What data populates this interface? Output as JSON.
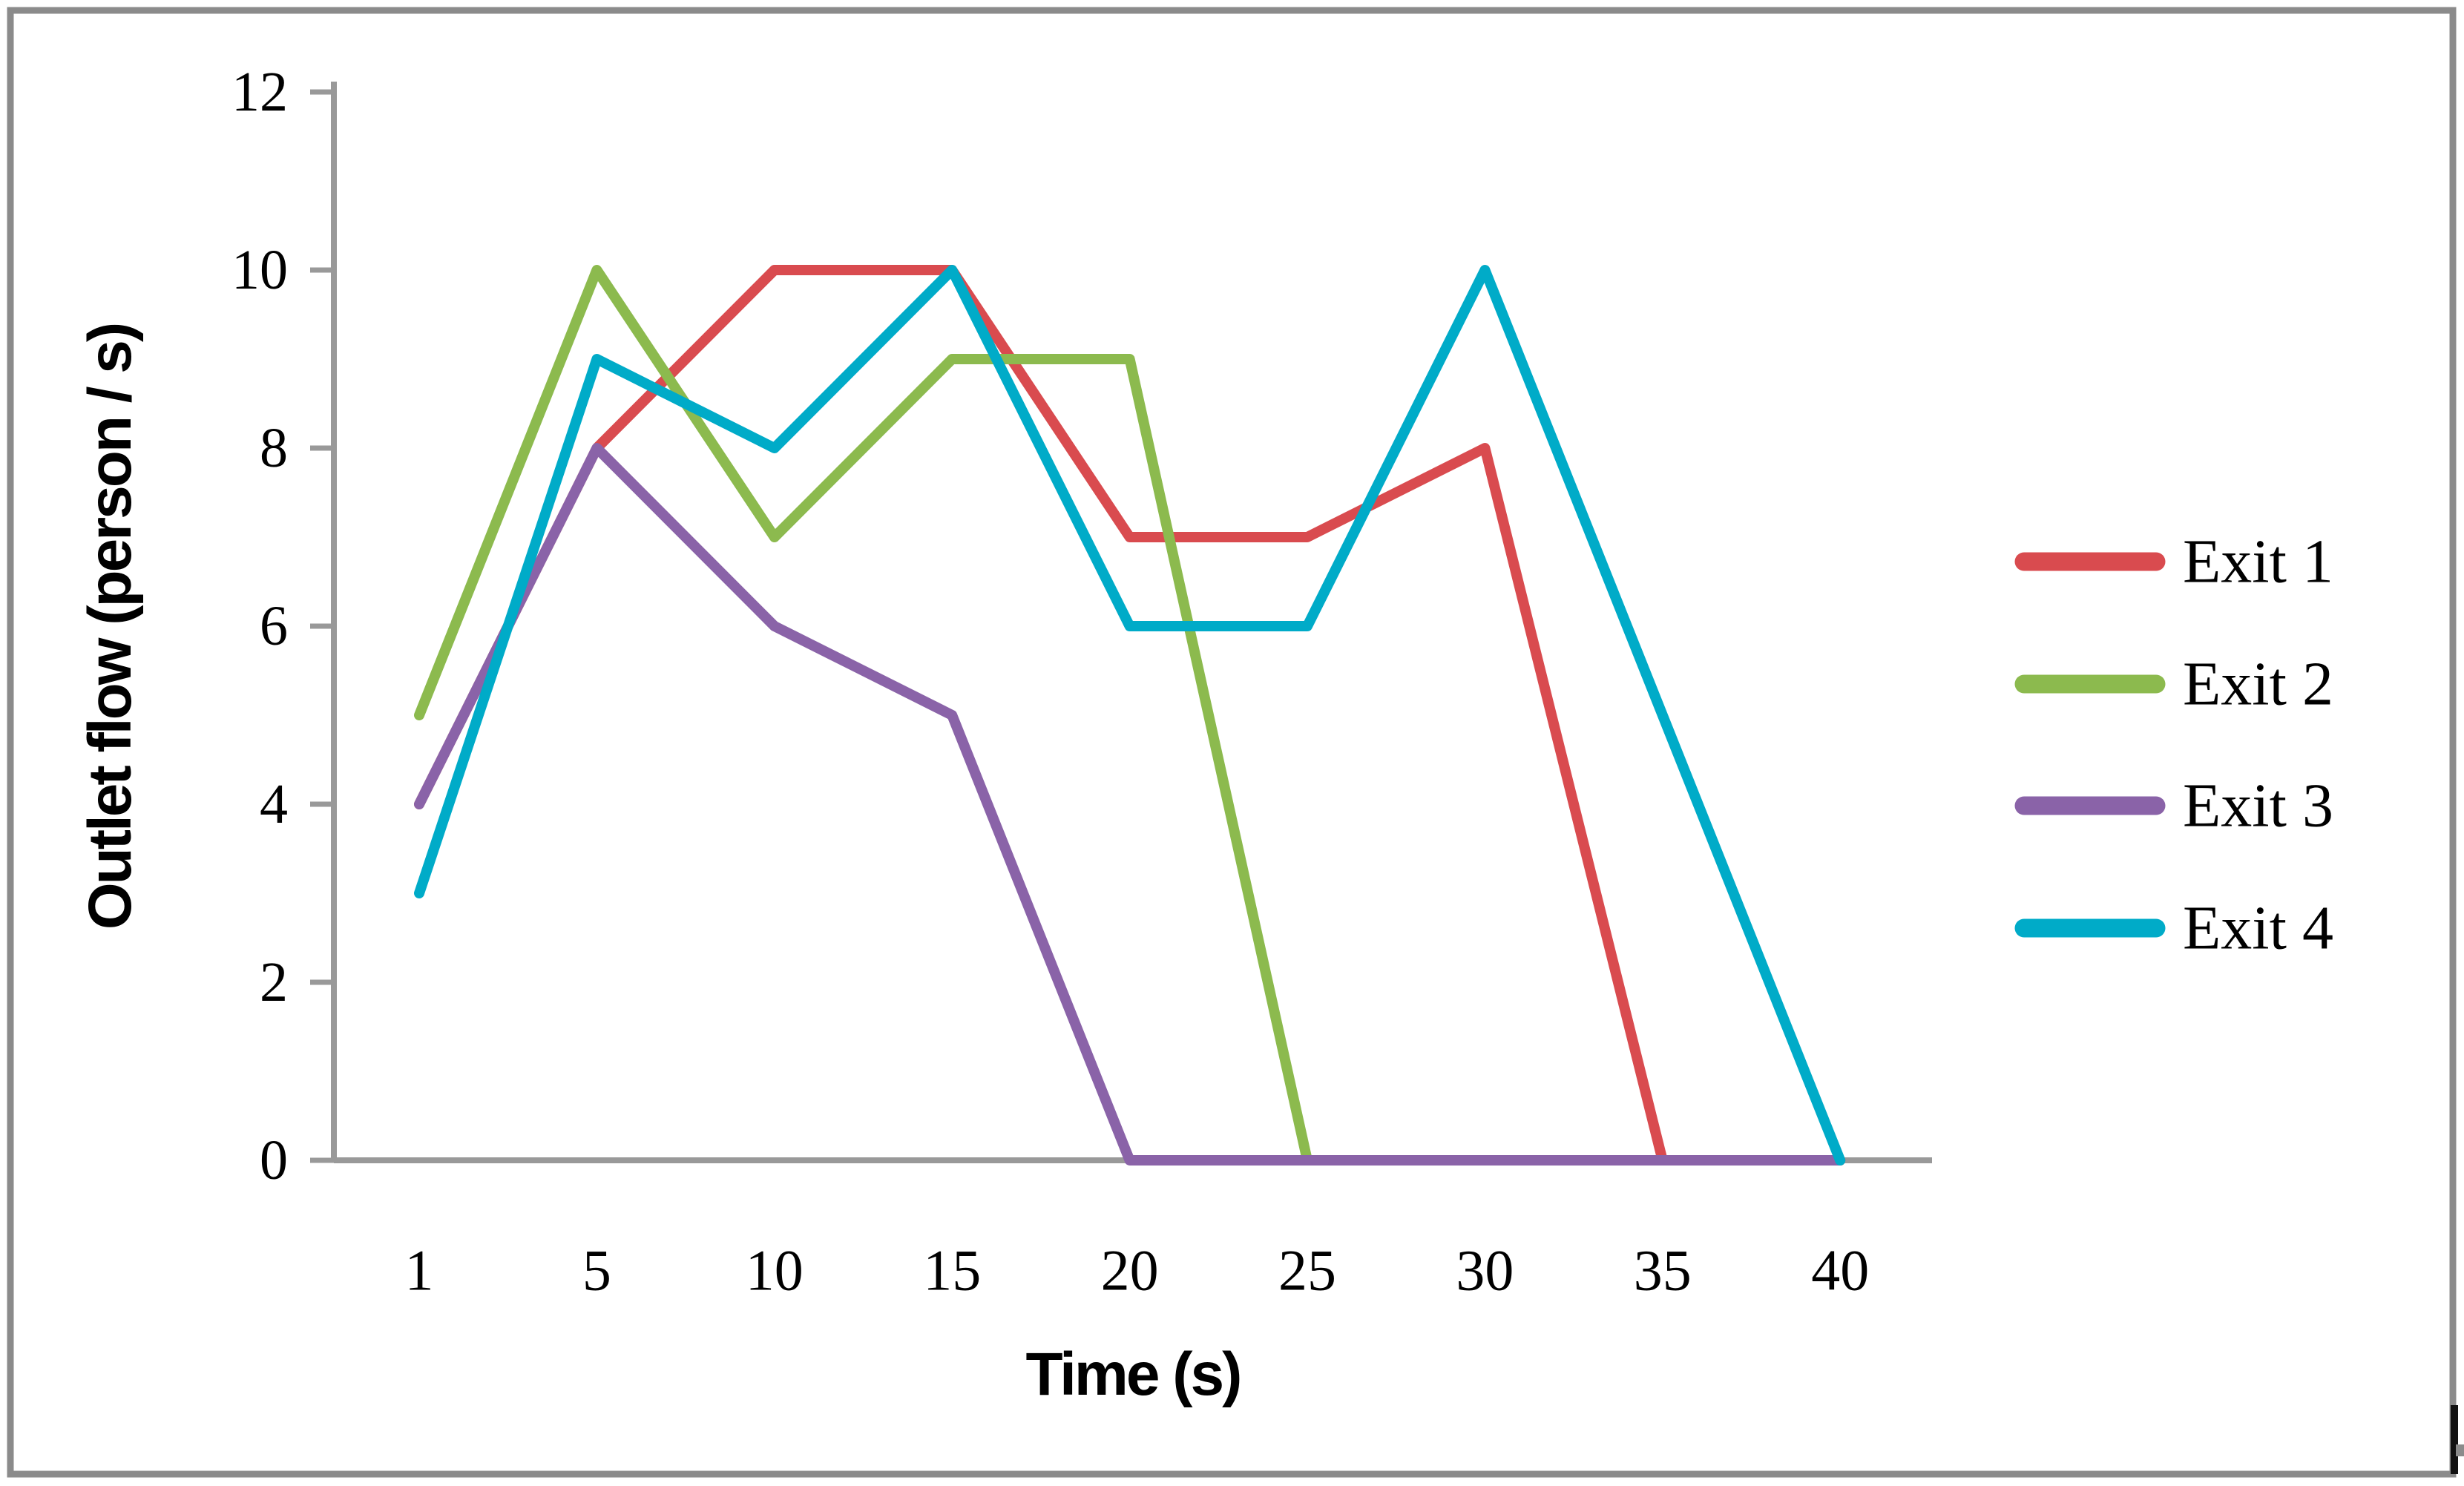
{
  "window": {
    "background": "#ffffff",
    "border_color": "#8b8b8b",
    "cursor_mark_color": "#111111"
  },
  "chart_data": {
    "type": "line",
    "title": "",
    "xlabel": "Time (s)",
    "ylabel": "Outlet flow (person / s)",
    "categories": [
      "1",
      "5",
      "10",
      "15",
      "20",
      "25",
      "30",
      "35",
      "40"
    ],
    "y_ticks": [
      "0",
      "2",
      "4",
      "6",
      "8",
      "10",
      "12"
    ],
    "ylim": [
      0,
      12
    ],
    "grid": false,
    "legend_position": "right",
    "axis_color": "#999999",
    "text_color": "#000000",
    "series": [
      {
        "name": "Exit 1",
        "color": "#d94b4f",
        "values": [
          4,
          8,
          10,
          10,
          7,
          7,
          8,
          0,
          0
        ]
      },
      {
        "name": "Exit 2",
        "color": "#8cba4e",
        "values": [
          5,
          10,
          7,
          9,
          9,
          0,
          0,
          0,
          0
        ]
      },
      {
        "name": "Exit 3",
        "color": "#8a63a8",
        "values": [
          4,
          8,
          6,
          5,
          0,
          0,
          0,
          0,
          0
        ]
      },
      {
        "name": "Exit 4",
        "color": "#00abc8",
        "values": [
          3,
          9,
          8,
          10,
          6,
          6,
          10,
          5,
          0
        ]
      }
    ]
  }
}
